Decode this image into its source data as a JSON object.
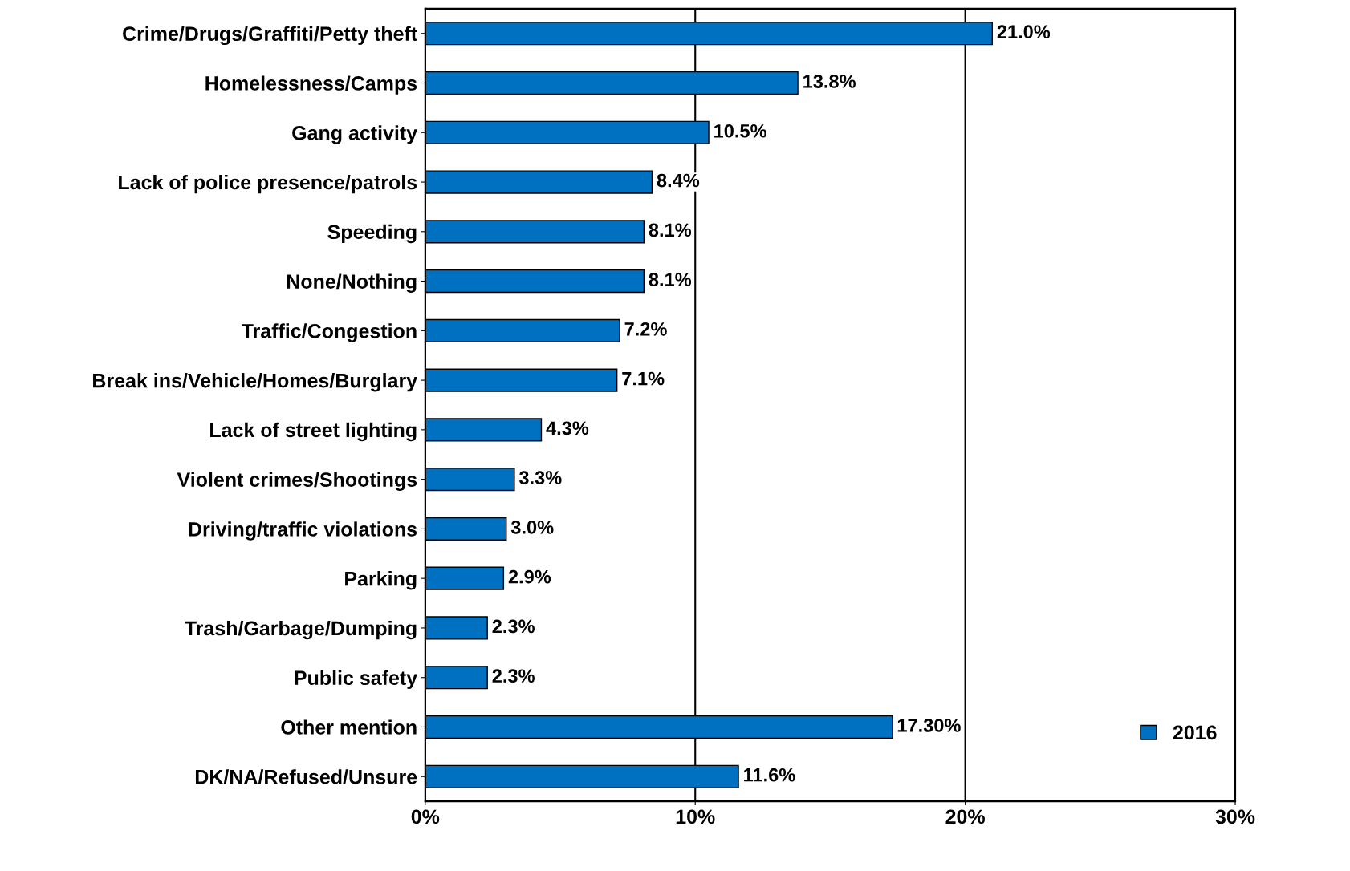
{
  "chart_data": {
    "type": "bar",
    "orientation": "horizontal",
    "categories": [
      "Crime/Drugs/Graffiti/Petty theft",
      "Homelessness/Camps",
      "Gang activity",
      "Lack of police presence/patrols",
      "Speeding",
      "None/Nothing",
      "Traffic/Congestion",
      "Break ins/Vehicle/Homes/Burglary",
      "Lack of street lighting",
      "Violent crimes/Shootings",
      "Driving/traffic violations",
      "Parking",
      "Trash/Garbage/Dumping",
      "Public safety",
      "Other mention",
      "DK/NA/Refused/Unsure"
    ],
    "series": [
      {
        "name": "2016",
        "color": "#0070c0",
        "values": [
          21.0,
          13.8,
          10.5,
          8.4,
          8.1,
          8.1,
          7.2,
          7.1,
          4.3,
          3.3,
          3.0,
          2.9,
          2.3,
          2.3,
          17.3,
          11.6
        ],
        "value_labels": [
          "21.0%",
          "13.8%",
          "10.5%",
          "8.4%",
          "8.1%",
          "8.1%",
          "7.2%",
          "7.1%",
          "4.3%",
          "3.3%",
          "3.0%",
          "2.9%",
          "2.3%",
          "2.3%",
          "17.30%",
          "11.6%"
        ]
      }
    ],
    "xlim": [
      0,
      30
    ],
    "xticks": [
      {
        "value": 0,
        "label": "0%"
      },
      {
        "value": 10,
        "label": "10%"
      },
      {
        "value": 20,
        "label": "20%"
      },
      {
        "value": 30,
        "label": "30%"
      }
    ],
    "grid": "x",
    "legend": "bottom right"
  }
}
